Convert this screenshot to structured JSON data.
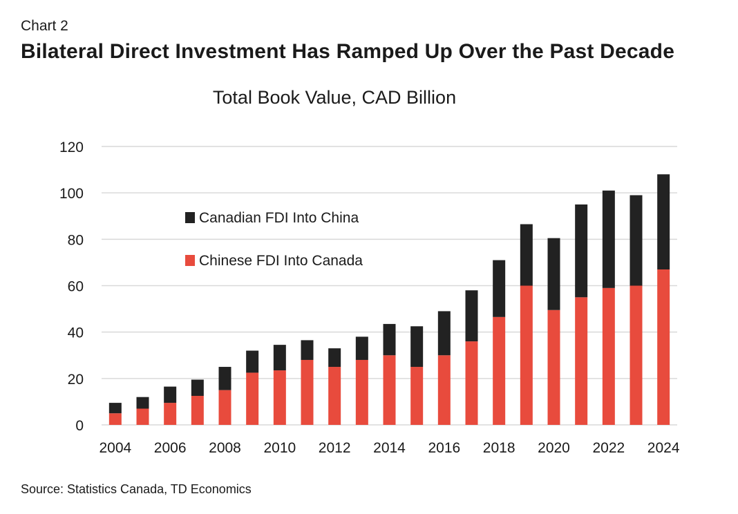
{
  "header": {
    "chart_number": "Chart 2",
    "title": "Bilateral Direct Investment Has Ramped Up Over the Past Decade"
  },
  "footer": {
    "source": "Source: Statistics Canada, TD Economics"
  },
  "colors": {
    "chinese_fdi": "#e84b3d",
    "canadian_fdi": "#222222",
    "grid": "#d9d9d9"
  },
  "chart_data": {
    "type": "bar",
    "stacked": true,
    "title": "Total Book Value, CAD Billion",
    "xlabel": "",
    "ylabel": "",
    "ylim": [
      0,
      120
    ],
    "yticks": [
      0,
      20,
      40,
      60,
      80,
      100,
      120
    ],
    "grid": true,
    "legend_position": "upper-left",
    "categories": [
      "2004",
      "2005",
      "2006",
      "2007",
      "2008",
      "2009",
      "2010",
      "2011",
      "2012",
      "2013",
      "2014",
      "2015",
      "2016",
      "2017",
      "2018",
      "2019",
      "2020",
      "2021",
      "2022",
      "2023",
      "2024"
    ],
    "xtick_labels": [
      "2004",
      "2006",
      "2008",
      "2010",
      "2012",
      "2014",
      "2016",
      "2018",
      "2020",
      "2022",
      "2024"
    ],
    "series": [
      {
        "name": "Chinese FDI Into Canada",
        "color": "#e84b3d",
        "values": [
          5,
          7,
          9.5,
          12.5,
          15,
          22.5,
          23.5,
          28,
          25,
          28,
          30,
          25,
          30,
          36,
          46.5,
          60,
          49.5,
          55,
          59,
          60,
          67
        ]
      },
      {
        "name": "Canadian FDI Into China",
        "color": "#222222",
        "values": [
          4.5,
          5,
          7,
          7,
          10,
          9.5,
          11,
          8.5,
          8,
          10,
          13.5,
          17.5,
          19,
          22,
          24.5,
          26.5,
          31,
          40,
          42,
          39,
          41
        ]
      }
    ]
  }
}
